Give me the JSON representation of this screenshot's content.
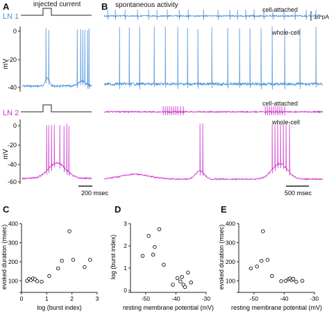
{
  "figure": {
    "panel_a": {
      "letter": "A",
      "stim_label": "injected current",
      "ln1_label": "LN 1",
      "ln2_label": "LN 2",
      "ylabel": "mV",
      "ticks": [
        "0",
        "-20",
        "-40",
        "0",
        "-20",
        "-40",
        "-60"
      ],
      "scalebar": "200 msec"
    },
    "panel_b": {
      "letter": "B",
      "title": "spontaneous activity",
      "cell_attached_1": "cell-attached",
      "whole_cell_1": "whole-cell",
      "cell_attached_2": "cell-attached",
      "whole_cell_2": "whole-cell",
      "current_scale": "10 pA",
      "scalebar": "500 msec"
    },
    "colors": {
      "ln1": "#4a90d9",
      "ln2": "#cc33cc",
      "axis": "#222222"
    }
  },
  "chart_data": [
    {
      "panel": "C",
      "type": "scatter",
      "xlabel": "log (burst index)",
      "ylabel": "evoked duration (msec)",
      "xlim": [
        0,
        3
      ],
      "ylim": [
        50,
        400
      ],
      "xticks": [
        "0",
        "1",
        "2",
        "3"
      ],
      "yticks": [
        "100",
        "200",
        "300",
        "400"
      ],
      "x": [
        0.22,
        0.3,
        0.38,
        0.46,
        0.54,
        0.62,
        0.8,
        1.1,
        1.45,
        1.6,
        1.9,
        2.05,
        2.5,
        2.72
      ],
      "y": [
        100,
        110,
        103,
        112,
        108,
        98,
        95,
        125,
        165,
        205,
        360,
        210,
        172,
        210
      ]
    },
    {
      "panel": "D",
      "type": "scatter",
      "xlabel": "resting membrane potential (mV)",
      "ylabel": "log (burst index)",
      "xlim": [
        -55,
        -30
      ],
      "ylim": [
        0,
        3
      ],
      "xticks": [
        "-50",
        "-40",
        "-30"
      ],
      "yticks": [
        "0",
        "1",
        "2",
        "3"
      ],
      "x": [
        -51,
        -49,
        -47.5,
        -47,
        -45.5,
        -44,
        -41,
        -39.5,
        -38.5,
        -38,
        -37.5,
        -37,
        -36,
        -35
      ],
      "y": [
        1.55,
        2.45,
        1.6,
        1.95,
        2.75,
        1.15,
        0.25,
        0.55,
        0.4,
        0.6,
        0.25,
        0.15,
        0.8,
        0.35
      ]
    },
    {
      "panel": "E",
      "type": "scatter",
      "xlabel": "resting membrane potential (mV)",
      "ylabel": "evoked duration (msec)",
      "xlim": [
        -55,
        -30
      ],
      "ylim": [
        50,
        400
      ],
      "xticks": [
        "-50",
        "-40",
        "-30"
      ],
      "yticks": [
        "100",
        "200",
        "300",
        "400"
      ],
      "x": [
        -51,
        -49,
        -47.5,
        -47,
        -45.5,
        -44,
        -41,
        -39.5,
        -38.5,
        -38,
        -37.5,
        -37,
        -36,
        -34
      ],
      "y": [
        165,
        175,
        205,
        360,
        210,
        125,
        98,
        100,
        108,
        112,
        103,
        110,
        95,
        100
      ]
    }
  ]
}
